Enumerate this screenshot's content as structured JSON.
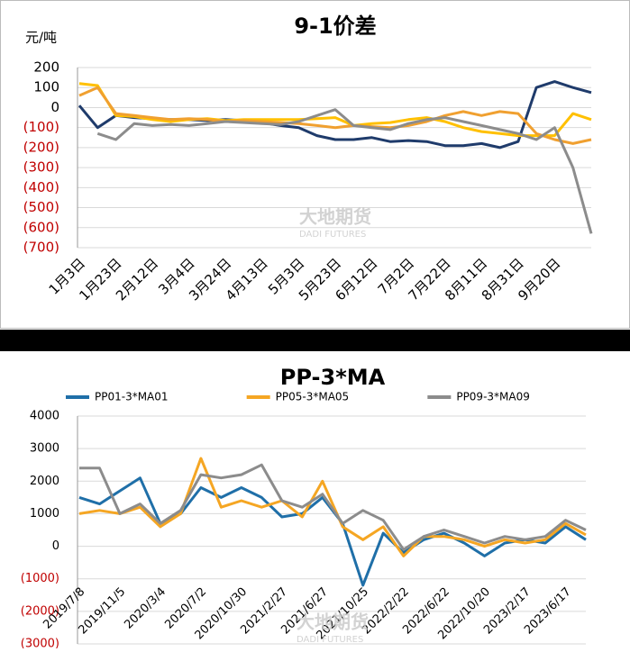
{
  "chart_data": [
    {
      "type": "line",
      "title": "9-1价差",
      "y_axis_label": "元/吨",
      "watermark": "大地期货",
      "watermark_sub": "DADI FUTURES",
      "categories": [
        "1月3日",
        null,
        "1月23日",
        null,
        "2月12日",
        null,
        "3月4日",
        null,
        "3月24日",
        null,
        "4月13日",
        null,
        "5月3日",
        null,
        "5月23日",
        null,
        "6月12日",
        null,
        "7月2日",
        null,
        "7月22日",
        null,
        "8月11日",
        null,
        "8月31日",
        null,
        "9月20日",
        null,
        null
      ],
      "series": [
        {
          "color": "#1f3b6b",
          "values": [
            10,
            -100,
            -40,
            -50,
            -55,
            -60,
            -60,
            -65,
            -60,
            -65,
            -75,
            -90,
            -100,
            -140,
            -160,
            -160,
            -150,
            -170,
            -165,
            -170,
            -190,
            -190,
            -180,
            -200,
            -170,
            100,
            130,
            100,
            75
          ]
        },
        {
          "color": "#ffc000",
          "values": [
            120,
            110,
            -40,
            -45,
            -60,
            -70,
            -60,
            -55,
            -65,
            -60,
            -60,
            -60,
            -60,
            -55,
            -50,
            -90,
            -80,
            -75,
            -60,
            -50,
            -70,
            -100,
            -120,
            -130,
            -140,
            -140,
            -140,
            -30,
            -60
          ]
        },
        {
          "color": "#f0a030",
          "values": [
            60,
            100,
            -30,
            -40,
            -50,
            -60,
            -55,
            -60,
            -70,
            -65,
            -70,
            -75,
            -80,
            -90,
            -100,
            -90,
            -95,
            -100,
            -90,
            -70,
            -40,
            -20,
            -40,
            -20,
            -30,
            -130,
            -160,
            -180,
            -160
          ]
        },
        {
          "color": "#8c8c8c",
          "values": [
            null,
            -130,
            -160,
            -80,
            -90,
            -85,
            -90,
            -80,
            -70,
            -75,
            -80,
            -85,
            -70,
            -40,
            -10,
            -90,
            -100,
            -110,
            -80,
            -60,
            -50,
            -70,
            -90,
            -110,
            -130,
            -160,
            -100,
            -300,
            -630
          ]
        }
      ],
      "ylim": [
        -700,
        200
      ],
      "yticks": [
        200,
        100,
        0,
        {
          "value": -100,
          "label": "(100)"
        },
        {
          "value": -200,
          "label": "(200)"
        },
        {
          "value": -300,
          "label": "(300)"
        },
        {
          "value": -400,
          "label": "(400)"
        },
        {
          "value": -500,
          "label": "(500)"
        },
        {
          "value": -600,
          "label": "(600)"
        },
        {
          "value": -700,
          "label": "(700)"
        }
      ],
      "negative_label_color": "#c00000",
      "grid": true
    },
    {
      "type": "line",
      "title": "PP-3*MA",
      "legend": "top",
      "watermark": "大地期货",
      "watermark_sub": "DADI FUTURES",
      "categories": [
        "2019/7/8",
        null,
        "2019/11/5",
        null,
        "2020/3/4",
        null,
        "2020/7/2",
        null,
        "2020/10/30",
        null,
        "2021/2/27",
        null,
        "2021/6/27",
        null,
        "2021/10/25",
        null,
        "2022/2/22",
        null,
        "2022/6/22",
        null,
        "2022/10/20",
        null,
        "2023/2/17",
        null,
        "2023/6/17",
        null
      ],
      "series": [
        {
          "name": "PP01-3*MA01",
          "color": "#1f6fa8",
          "values": [
            1500,
            1300,
            1700,
            2100,
            700,
            1000,
            1800,
            1500,
            1800,
            1500,
            900,
            1000,
            1500,
            700,
            -1200,
            400,
            -200,
            200,
            400,
            100,
            -300,
            100,
            200,
            100,
            600,
            200
          ]
        },
        {
          "name": "PP05-3*MA05",
          "color": "#f5a623",
          "values": [
            1000,
            1100,
            1000,
            1200,
            600,
            1000,
            2700,
            1200,
            1400,
            1200,
            1400,
            900,
            2000,
            600,
            200,
            600,
            -300,
            300,
            300,
            200,
            0,
            200,
            100,
            200,
            700,
            350
          ]
        },
        {
          "name": "PP09-3*MA09",
          "color": "#8c8c8c",
          "values": [
            2400,
            2400,
            1000,
            1300,
            700,
            1100,
            2200,
            2100,
            2200,
            2500,
            1400,
            1200,
            1600,
            700,
            1100,
            800,
            -100,
            300,
            500,
            300,
            100,
            300,
            200,
            300,
            800,
            500
          ]
        }
      ],
      "ylim": [
        -3000,
        4000
      ],
      "yticks": [
        4000,
        3000,
        2000,
        1000,
        0,
        {
          "value": -1000,
          "label": "(1000)"
        },
        {
          "value": -2000,
          "label": "(2000)"
        },
        {
          "value": -3000,
          "label": "(3000)"
        }
      ],
      "negative_label_color": "#c00000",
      "grid": true
    }
  ]
}
